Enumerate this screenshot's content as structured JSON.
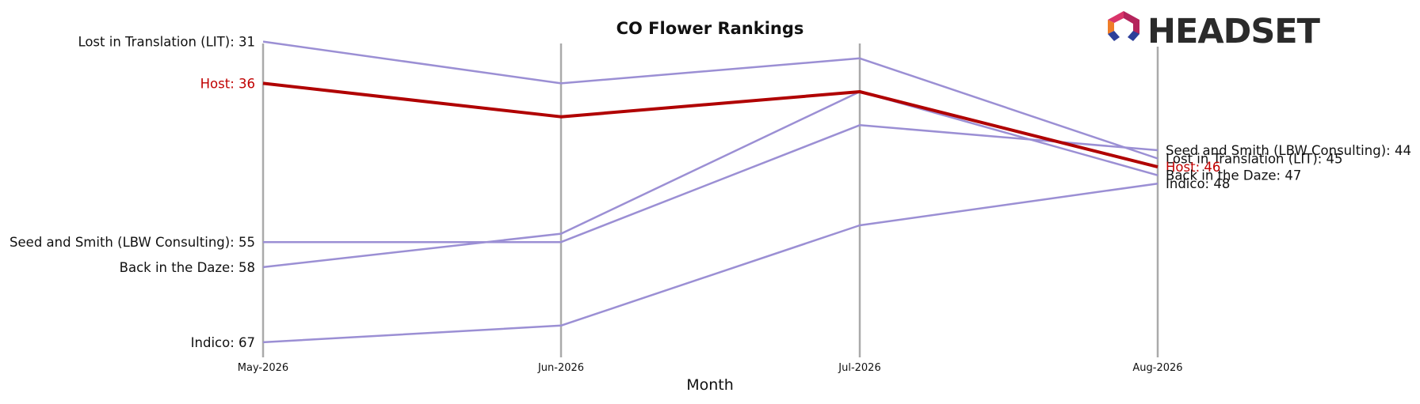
{
  "chart_data": {
    "type": "line",
    "title": "CO Flower Rankings",
    "xlabel": "Month",
    "ylabel": "",
    "x": [
      "May-2026",
      "Jun-2026",
      "Jul-2026",
      "Aug-2026"
    ],
    "y_inverted": true,
    "ylim": [
      68,
      29
    ],
    "grid": false,
    "legend": "none",
    "series": [
      {
        "name": "Lost in Translation (LIT)",
        "values": [
          31,
          36,
          33,
          45
        ],
        "is_host": false
      },
      {
        "name": "Host",
        "values": [
          36,
          40,
          37,
          46
        ],
        "is_host": true
      },
      {
        "name": "Seed and Smith (LBW Consulting)",
        "values": [
          55,
          55,
          41,
          44
        ],
        "is_host": false
      },
      {
        "name": "Back in the Daze",
        "values": [
          58,
          54,
          37,
          47
        ],
        "is_host": false
      },
      {
        "name": "Indico",
        "values": [
          67,
          65,
          53,
          48
        ],
        "is_host": false
      }
    ],
    "colors": {
      "series": "#9b8fd4",
      "host": "#b00000",
      "month_lines": "#aaaaaa"
    }
  },
  "logo": {
    "text": "HEADSET",
    "icon": "headset-hexagon-logo-icon"
  }
}
